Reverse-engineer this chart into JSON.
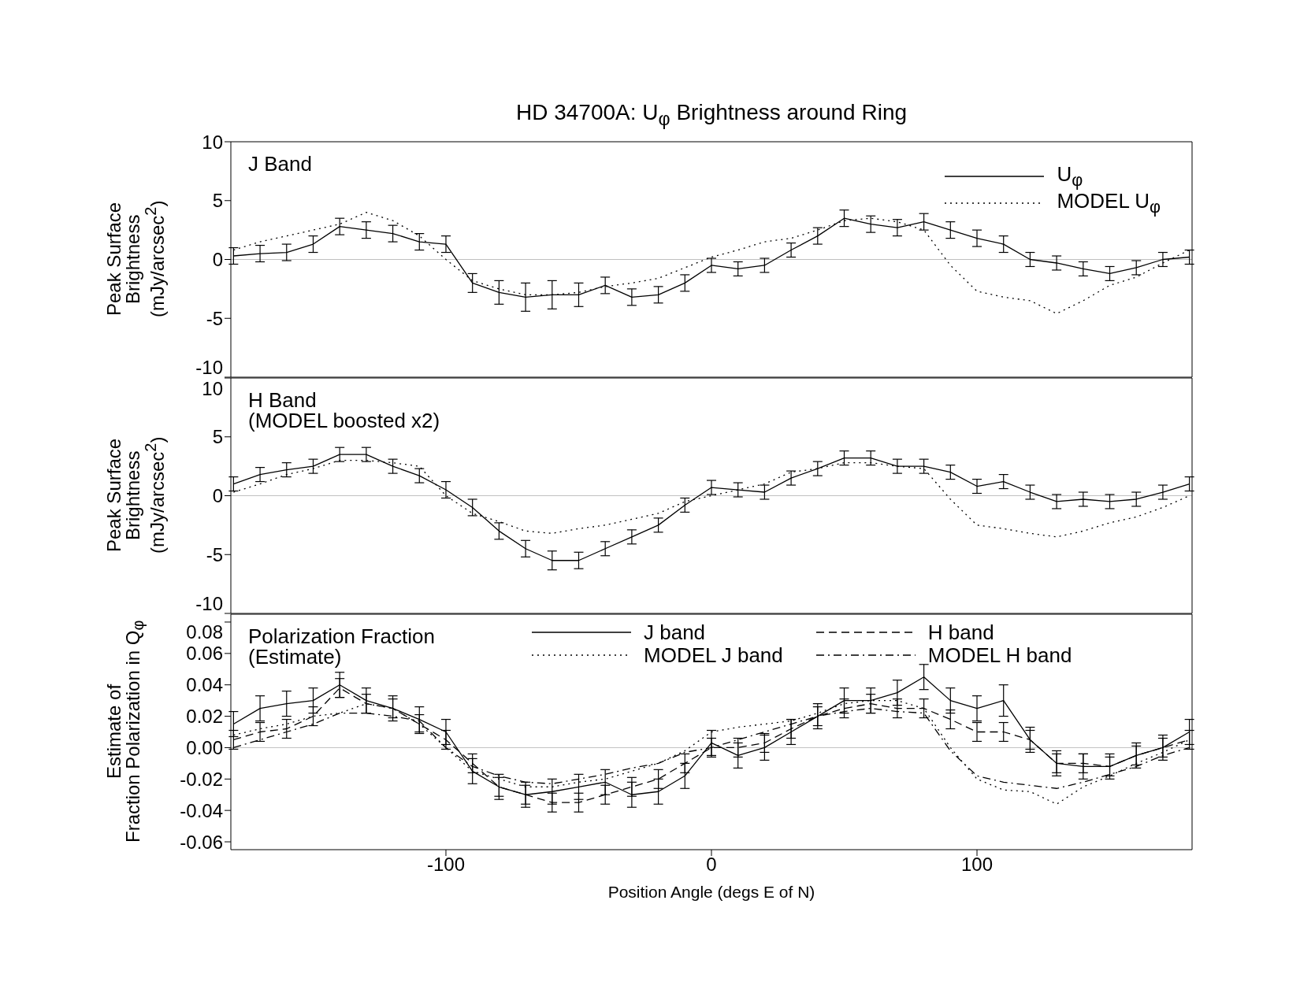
{
  "chart_data": [
    {
      "type": "line",
      "title": "HD 34700A: U$_{φ}$ Brightness around Ring",
      "ylabel": "Peak Surface\nBrightness\n(mJy/arcsec$^{2}$)",
      "annotations": [
        "J Band"
      ],
      "legend": "top right",
      "tick_labels": "y",
      "x": [
        -180,
        -170,
        -160,
        -150,
        -140,
        -130,
        -120,
        -110,
        -100,
        -90,
        -80,
        -70,
        -60,
        -50,
        -40,
        -30,
        -20,
        -10,
        0,
        10,
        20,
        30,
        40,
        50,
        60,
        70,
        80,
        90,
        100,
        110,
        120,
        130,
        140,
        150,
        160,
        170,
        180
      ],
      "xlim": [
        -181,
        181
      ],
      "xticks": [
        -100,
        0,
        100
      ],
      "ylim": [
        -10,
        10
      ],
      "yticks": [
        -10,
        -5,
        0,
        5,
        10
      ],
      "ref_lines": [
        {
          "axis": "y",
          "value": 0,
          "color": "#c0c0c0"
        }
      ],
      "series": [
        {
          "name": "U$_{φ}$",
          "color": "#000000",
          "line_style": "solid",
          "values": [
            0.3,
            0.5,
            0.6,
            1.3,
            2.8,
            2.5,
            2.2,
            1.5,
            1.3,
            -2.0,
            -2.8,
            -3.2,
            -3.0,
            -3.0,
            -2.2,
            -3.2,
            -3.0,
            -2.0,
            -0.5,
            -0.8,
            -0.5,
            0.8,
            2.0,
            3.5,
            3.0,
            2.7,
            3.2,
            2.5,
            1.8,
            1.3,
            0.0,
            -0.3,
            -0.8,
            -1.2,
            -0.7,
            0.0,
            0.2
          ],
          "errors": [
            0.7,
            0.7,
            0.7,
            0.7,
            0.7,
            0.7,
            0.7,
            0.7,
            0.7,
            0.8,
            1.0,
            1.2,
            1.2,
            1.0,
            0.7,
            0.7,
            0.7,
            0.7,
            0.6,
            0.6,
            0.6,
            0.6,
            0.7,
            0.7,
            0.7,
            0.7,
            0.7,
            0.7,
            0.7,
            0.7,
            0.6,
            0.6,
            0.6,
            0.6,
            0.6,
            0.6,
            0.6
          ]
        },
        {
          "name": "MODEL U$_{φ}$",
          "color": "#000000",
          "line_style": "dotted",
          "values": [
            0.8,
            1.5,
            2.0,
            2.5,
            3.0,
            4.0,
            3.3,
            2.0,
            0.0,
            -1.8,
            -2.5,
            -3.0,
            -3.0,
            -2.8,
            -2.3,
            -2.0,
            -1.6,
            -0.7,
            0.2,
            0.8,
            1.5,
            1.8,
            2.5,
            3.3,
            3.5,
            3.2,
            2.5,
            -0.5,
            -2.7,
            -3.2,
            -3.5,
            -4.6,
            -3.5,
            -2.2,
            -1.5,
            -0.3,
            0.8
          ]
        }
      ]
    },
    {
      "type": "line",
      "ylabel": "Peak Surface\nBrightness\n(mJy/arcsec$^{2}$)",
      "annotations": [
        "H Band\n(MODEL boosted x2)"
      ],
      "tick_labels": "y",
      "x": [
        -180,
        -170,
        -160,
        -150,
        -140,
        -130,
        -120,
        -110,
        -100,
        -90,
        -80,
        -70,
        -60,
        -50,
        -40,
        -30,
        -20,
        -10,
        0,
        10,
        20,
        30,
        40,
        50,
        60,
        70,
        80,
        90,
        100,
        110,
        120,
        130,
        140,
        150,
        160,
        170,
        180
      ],
      "xlim": [
        -181,
        181
      ],
      "xticks": [
        -100,
        0,
        100
      ],
      "ylim": [
        -10,
        10
      ],
      "yticks": [
        -10,
        -5,
        0,
        5,
        10
      ],
      "ref_lines": [
        {
          "axis": "y",
          "value": 0,
          "color": "#c0c0c0"
        }
      ],
      "series": [
        {
          "color": "#000000",
          "line_style": "solid",
          "values": [
            1.0,
            1.8,
            2.2,
            2.5,
            3.5,
            3.5,
            2.5,
            1.7,
            0.5,
            -1.0,
            -3.0,
            -4.5,
            -5.5,
            -5.5,
            -4.5,
            -3.5,
            -2.5,
            -0.8,
            0.7,
            0.5,
            0.3,
            1.5,
            2.3,
            3.2,
            3.2,
            2.5,
            2.5,
            2.0,
            0.8,
            1.2,
            0.3,
            -0.5,
            -0.3,
            -0.5,
            -0.3,
            0.3,
            1.0
          ],
          "errors": [
            0.6,
            0.6,
            0.6,
            0.6,
            0.6,
            0.6,
            0.6,
            0.6,
            0.7,
            0.7,
            0.7,
            0.7,
            0.8,
            0.7,
            0.6,
            0.6,
            0.6,
            0.6,
            0.6,
            0.6,
            0.6,
            0.6,
            0.6,
            0.6,
            0.6,
            0.6,
            0.6,
            0.6,
            0.6,
            0.6,
            0.6,
            0.6,
            0.6,
            0.6,
            0.6,
            0.6,
            0.6
          ]
        },
        {
          "color": "#000000",
          "line_style": "dotted",
          "values": [
            0.3,
            1.0,
            1.8,
            2.3,
            3.0,
            3.0,
            2.8,
            2.5,
            0.0,
            -1.5,
            -2.2,
            -3.0,
            -3.2,
            -2.8,
            -2.5,
            -2.0,
            -1.5,
            -0.5,
            0.0,
            0.5,
            1.0,
            2.0,
            2.3,
            2.8,
            2.8,
            2.5,
            2.3,
            -0.3,
            -2.5,
            -2.8,
            -3.2,
            -3.5,
            -3.0,
            -2.3,
            -1.8,
            -1.0,
            0.0
          ]
        }
      ]
    },
    {
      "type": "line",
      "ylabel": "Estimate of\nFraction Polarization in Q$_{φ}$",
      "xlabel": "Position Angle (degs E of N)",
      "annotations": [
        "Polarization Fraction\n(Estimate)"
      ],
      "legend": "top",
      "x": [
        -180,
        -170,
        -160,
        -150,
        -140,
        -130,
        -120,
        -110,
        -100,
        -90,
        -80,
        -70,
        -60,
        -50,
        -40,
        -30,
        -20,
        -10,
        0,
        10,
        20,
        30,
        40,
        50,
        60,
        70,
        80,
        90,
        100,
        110,
        120,
        130,
        140,
        150,
        160,
        170,
        180
      ],
      "xlim": [
        -181,
        181
      ],
      "xticks": [
        -100,
        0,
        100
      ],
      "ylim": [
        -0.065,
        0.085
      ],
      "yticks": [
        -0.06,
        -0.04,
        -0.02,
        {
          "value": 0,
          "label": "0.00"
        },
        0.02,
        0.04,
        0.06,
        0.08
      ],
      "ref_lines": [
        {
          "axis": "y",
          "value": 0,
          "color": "#c0c0c0"
        }
      ],
      "series": [
        {
          "name": "J band",
          "color": "#000000",
          "line_style": "solid",
          "values": [
            0.015,
            0.025,
            0.028,
            0.03,
            0.04,
            0.03,
            0.025,
            0.018,
            0.01,
            -0.015,
            -0.025,
            -0.03,
            -0.028,
            -0.025,
            -0.022,
            -0.03,
            -0.028,
            -0.018,
            0.003,
            -0.005,
            0.0,
            0.01,
            0.02,
            0.03,
            0.03,
            0.035,
            0.045,
            0.03,
            0.025,
            0.03,
            0.005,
            -0.01,
            -0.012,
            -0.012,
            -0.005,
            0.0,
            0.01
          ],
          "errors": [
            0.008,
            0.008,
            0.008,
            0.008,
            0.008,
            0.008,
            0.008,
            0.008,
            0.008,
            0.008,
            0.008,
            0.008,
            0.008,
            0.008,
            0.008,
            0.008,
            0.008,
            0.008,
            0.008,
            0.008,
            0.008,
            0.008,
            0.008,
            0.008,
            0.008,
            0.008,
            0.008,
            0.008,
            0.008,
            0.01,
            0.008,
            0.008,
            0.008,
            0.008,
            0.008,
            0.008,
            0.008
          ]
        },
        {
          "name": "MODEL J band",
          "color": "#000000",
          "line_style": "dotted",
          "values": [
            0.008,
            0.012,
            0.015,
            0.02,
            0.022,
            0.028,
            0.025,
            0.015,
            0.0,
            -0.015,
            -0.02,
            -0.025,
            -0.025,
            -0.022,
            -0.02,
            -0.015,
            -0.01,
            -0.002,
            0.01,
            0.013,
            0.015,
            0.017,
            0.022,
            0.028,
            0.03,
            0.03,
            0.025,
            0.0,
            -0.02,
            -0.027,
            -0.028,
            -0.036,
            -0.025,
            -0.018,
            -0.01,
            -0.003,
            0.005
          ]
        },
        {
          "name": "H band",
          "color": "#000000",
          "line_style": "dashed",
          "values": [
            0.005,
            0.01,
            0.012,
            0.02,
            0.038,
            0.028,
            0.025,
            0.015,
            0.005,
            -0.01,
            -0.025,
            -0.03,
            -0.035,
            -0.035,
            -0.03,
            -0.025,
            -0.02,
            -0.01,
            0.0,
            0.0,
            0.003,
            0.012,
            0.02,
            0.025,
            0.028,
            0.025,
            0.025,
            0.018,
            0.01,
            0.01,
            0.005,
            -0.01,
            -0.01,
            -0.012,
            -0.005,
            0.0,
            0.005
          ],
          "errors": [
            0.006,
            0.006,
            0.006,
            0.006,
            0.006,
            0.006,
            0.006,
            0.006,
            0.006,
            0.006,
            0.006,
            0.006,
            0.006,
            0.006,
            0.006,
            0.006,
            0.006,
            0.006,
            0.006,
            0.006,
            0.006,
            0.006,
            0.006,
            0.006,
            0.006,
            0.006,
            0.006,
            0.006,
            0.006,
            0.006,
            0.006,
            0.006,
            0.006,
            0.006,
            0.006,
            0.006,
            0.006
          ]
        },
        {
          "name": "MODEL H band",
          "color": "#000000",
          "line_style": "dashdot",
          "values": [
            0.0,
            0.005,
            0.01,
            0.015,
            0.022,
            0.022,
            0.02,
            0.017,
            0.0,
            -0.012,
            -0.018,
            -0.022,
            -0.023,
            -0.02,
            -0.017,
            -0.013,
            -0.01,
            -0.003,
            0.0,
            0.005,
            0.01,
            0.015,
            0.02,
            0.023,
            0.025,
            0.023,
            0.022,
            -0.002,
            -0.018,
            -0.022,
            -0.024,
            -0.026,
            -0.022,
            -0.017,
            -0.012,
            -0.005,
            0.0
          ]
        }
      ]
    }
  ]
}
